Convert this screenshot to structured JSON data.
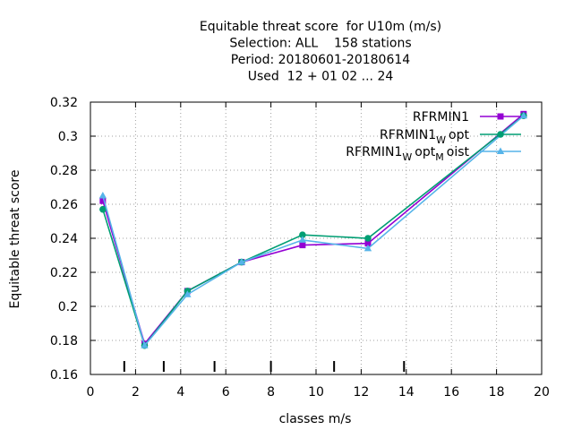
{
  "chart_data": {
    "type": "line",
    "title_lines": [
      "Equitable threat score  for U10m (m/s)",
      "Selection: ALL    158 stations",
      "Period: 20180601-20180614",
      "Used  12 + 01 02 ... 24"
    ],
    "xlabel": "classes m/s",
    "ylabel": "Equitable threat score",
    "xlim": [
      0,
      20
    ],
    "ylim": [
      0.16,
      0.32
    ],
    "xticks": [
      0,
      2,
      4,
      6,
      8,
      10,
      12,
      14,
      16,
      18,
      20
    ],
    "xtick_labels": [
      "0",
      "2",
      "4",
      "6",
      "8",
      "10",
      "12",
      "14",
      "16",
      "18",
      "20"
    ],
    "yticks": [
      0.16,
      0.18,
      0.2,
      0.22,
      0.24,
      0.26,
      0.28,
      0.3,
      0.32
    ],
    "ytick_labels": [
      "0.16",
      "0.18",
      "0.2",
      "0.22",
      "0.24",
      "0.26",
      "0.28",
      "0.3",
      "0.32"
    ],
    "grid": true,
    "legend_position": "top-right",
    "class_markers": [
      1.5,
      3.25,
      5.5,
      8.0,
      10.8,
      13.9
    ],
    "series": [
      {
        "name": "RFRMIN1",
        "legend": {
          "base": "RFRMIN1",
          "parts": []
        },
        "color": "#9400d3",
        "marker": "filled-square",
        "x": [
          0.55,
          2.4,
          4.3,
          6.7,
          9.4,
          12.3,
          19.2
        ],
        "y": [
          0.262,
          0.178,
          0.209,
          0.226,
          0.236,
          0.237,
          0.313
        ]
      },
      {
        "name": "RFRMIN1_W opt",
        "legend": {
          "base": "RFRMIN1",
          "parts": [
            {
              "sub": "W"
            },
            {
              "text": "opt"
            }
          ]
        },
        "color": "#009e73",
        "marker": "filled-circle",
        "x": [
          0.55,
          2.4,
          4.3,
          6.7,
          9.4,
          12.3,
          19.2
        ],
        "y": [
          0.257,
          0.177,
          0.209,
          0.226,
          0.242,
          0.24,
          0.312
        ]
      },
      {
        "name": "RFRMIN1_W opt_M oist",
        "legend": {
          "base": "RFRMIN1",
          "parts": [
            {
              "sub": "W"
            },
            {
              "text": "opt"
            },
            {
              "sub": "M"
            },
            {
              "text": "oist"
            }
          ]
        },
        "color": "#56b4e9",
        "marker": "filled-triangle",
        "x": [
          0.55,
          2.4,
          4.3,
          6.7,
          9.4,
          12.3,
          19.2
        ],
        "y": [
          0.265,
          0.177,
          0.207,
          0.226,
          0.239,
          0.234,
          0.312
        ]
      }
    ]
  }
}
